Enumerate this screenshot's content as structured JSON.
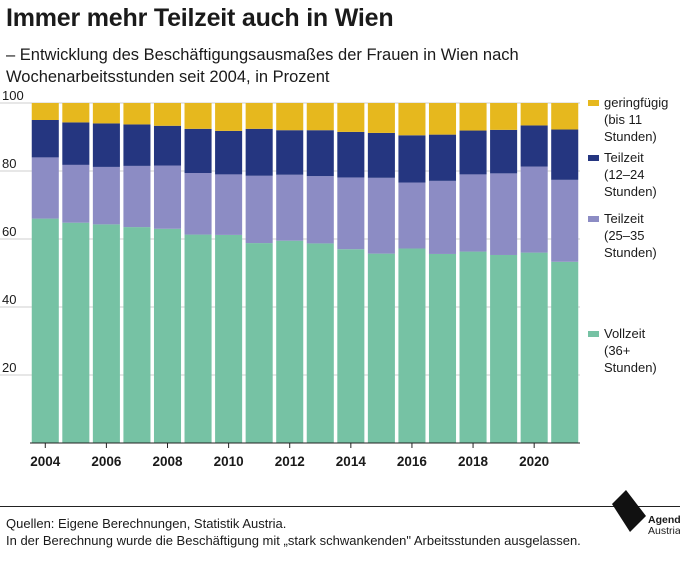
{
  "header": {
    "title": "Immer mehr Teilzeit auch in Wien",
    "subtitle": "– Entwicklung des Beschäftigungsausmaßes der Frauen in Wien nach Wochenarbeitsstunden seit 2004, in Prozent"
  },
  "footer": {
    "source_line1": "Quellen: Eigene Berechnungen, Statistik Austria.",
    "source_line2": "In der Berechnung wurde die Beschäftigung mit „stark schwankenden\" Arbeitsstunden ausgelassen."
  },
  "logo": {
    "line1": "Agenda",
    "line2": "Austria",
    "icon": "agenda-austria-logo-icon"
  },
  "colors": {
    "vollzeit": "#76c2a4",
    "teilzeit_25_35": "#8c8cc4",
    "teilzeit_12_24": "#253680",
    "geringfuegig": "#e6b81e"
  },
  "chart_data": {
    "type": "bar",
    "stacked": true,
    "x": [
      2004,
      2005,
      2006,
      2007,
      2008,
      2009,
      2010,
      2011,
      2012,
      2013,
      2014,
      2015,
      2016,
      2017,
      2018,
      2019,
      2020,
      2021
    ],
    "x_tick_labels": [
      "2004",
      "2006",
      "2008",
      "2010",
      "2012",
      "2014",
      "2016",
      "2018",
      "2020"
    ],
    "y_ticks": [
      20,
      40,
      60,
      80,
      100
    ],
    "ylim": [
      0,
      100
    ],
    "legend_position": "right",
    "series": [
      {
        "name": "Vollzeit (36+ Stunden)",
        "legend_lines": [
          "Vollzeit",
          "(36+",
          "Stunden)"
        ],
        "color": "#76c2a4",
        "values": [
          66,
          64.8,
          64.3,
          63.5,
          63,
          61.3,
          61.2,
          58.8,
          59.5,
          58.7,
          57,
          55.7,
          57.2,
          55.6,
          56.3,
          55.3,
          56,
          53.3
        ]
      },
      {
        "name": "Teilzeit (25–35 Stunden)",
        "legend_lines": [
          "Teilzeit",
          "(25–35",
          "Stunden)"
        ],
        "color": "#8c8cc4",
        "values": [
          18,
          17,
          16.9,
          18,
          18.6,
          18.1,
          17.8,
          19.8,
          19.4,
          19.8,
          21.1,
          22.3,
          19.4,
          21.5,
          22.7,
          24,
          25.3,
          24.1
        ]
      },
      {
        "name": "Teilzeit (12–24 Stunden)",
        "legend_lines": [
          "Teilzeit",
          "(12–24",
          "Stunden)"
        ],
        "color": "#253680",
        "values": [
          11,
          12.5,
          12.8,
          12.2,
          11.7,
          13,
          12.8,
          13.8,
          13.1,
          13.5,
          13.4,
          13.2,
          13.9,
          13.6,
          12.9,
          12.8,
          12.1,
          14.8
        ]
      },
      {
        "name": "geringfügig (bis 11 Stunden)",
        "legend_lines": [
          "geringfügig",
          "(bis 11",
          "Stunden)"
        ],
        "color": "#e6b81e",
        "values": [
          5,
          5.7,
          6,
          6.3,
          6.7,
          7.6,
          8.2,
          7.6,
          8,
          8,
          8.5,
          8.8,
          9.5,
          9.3,
          8.1,
          7.9,
          6.6,
          7.8
        ]
      }
    ]
  }
}
